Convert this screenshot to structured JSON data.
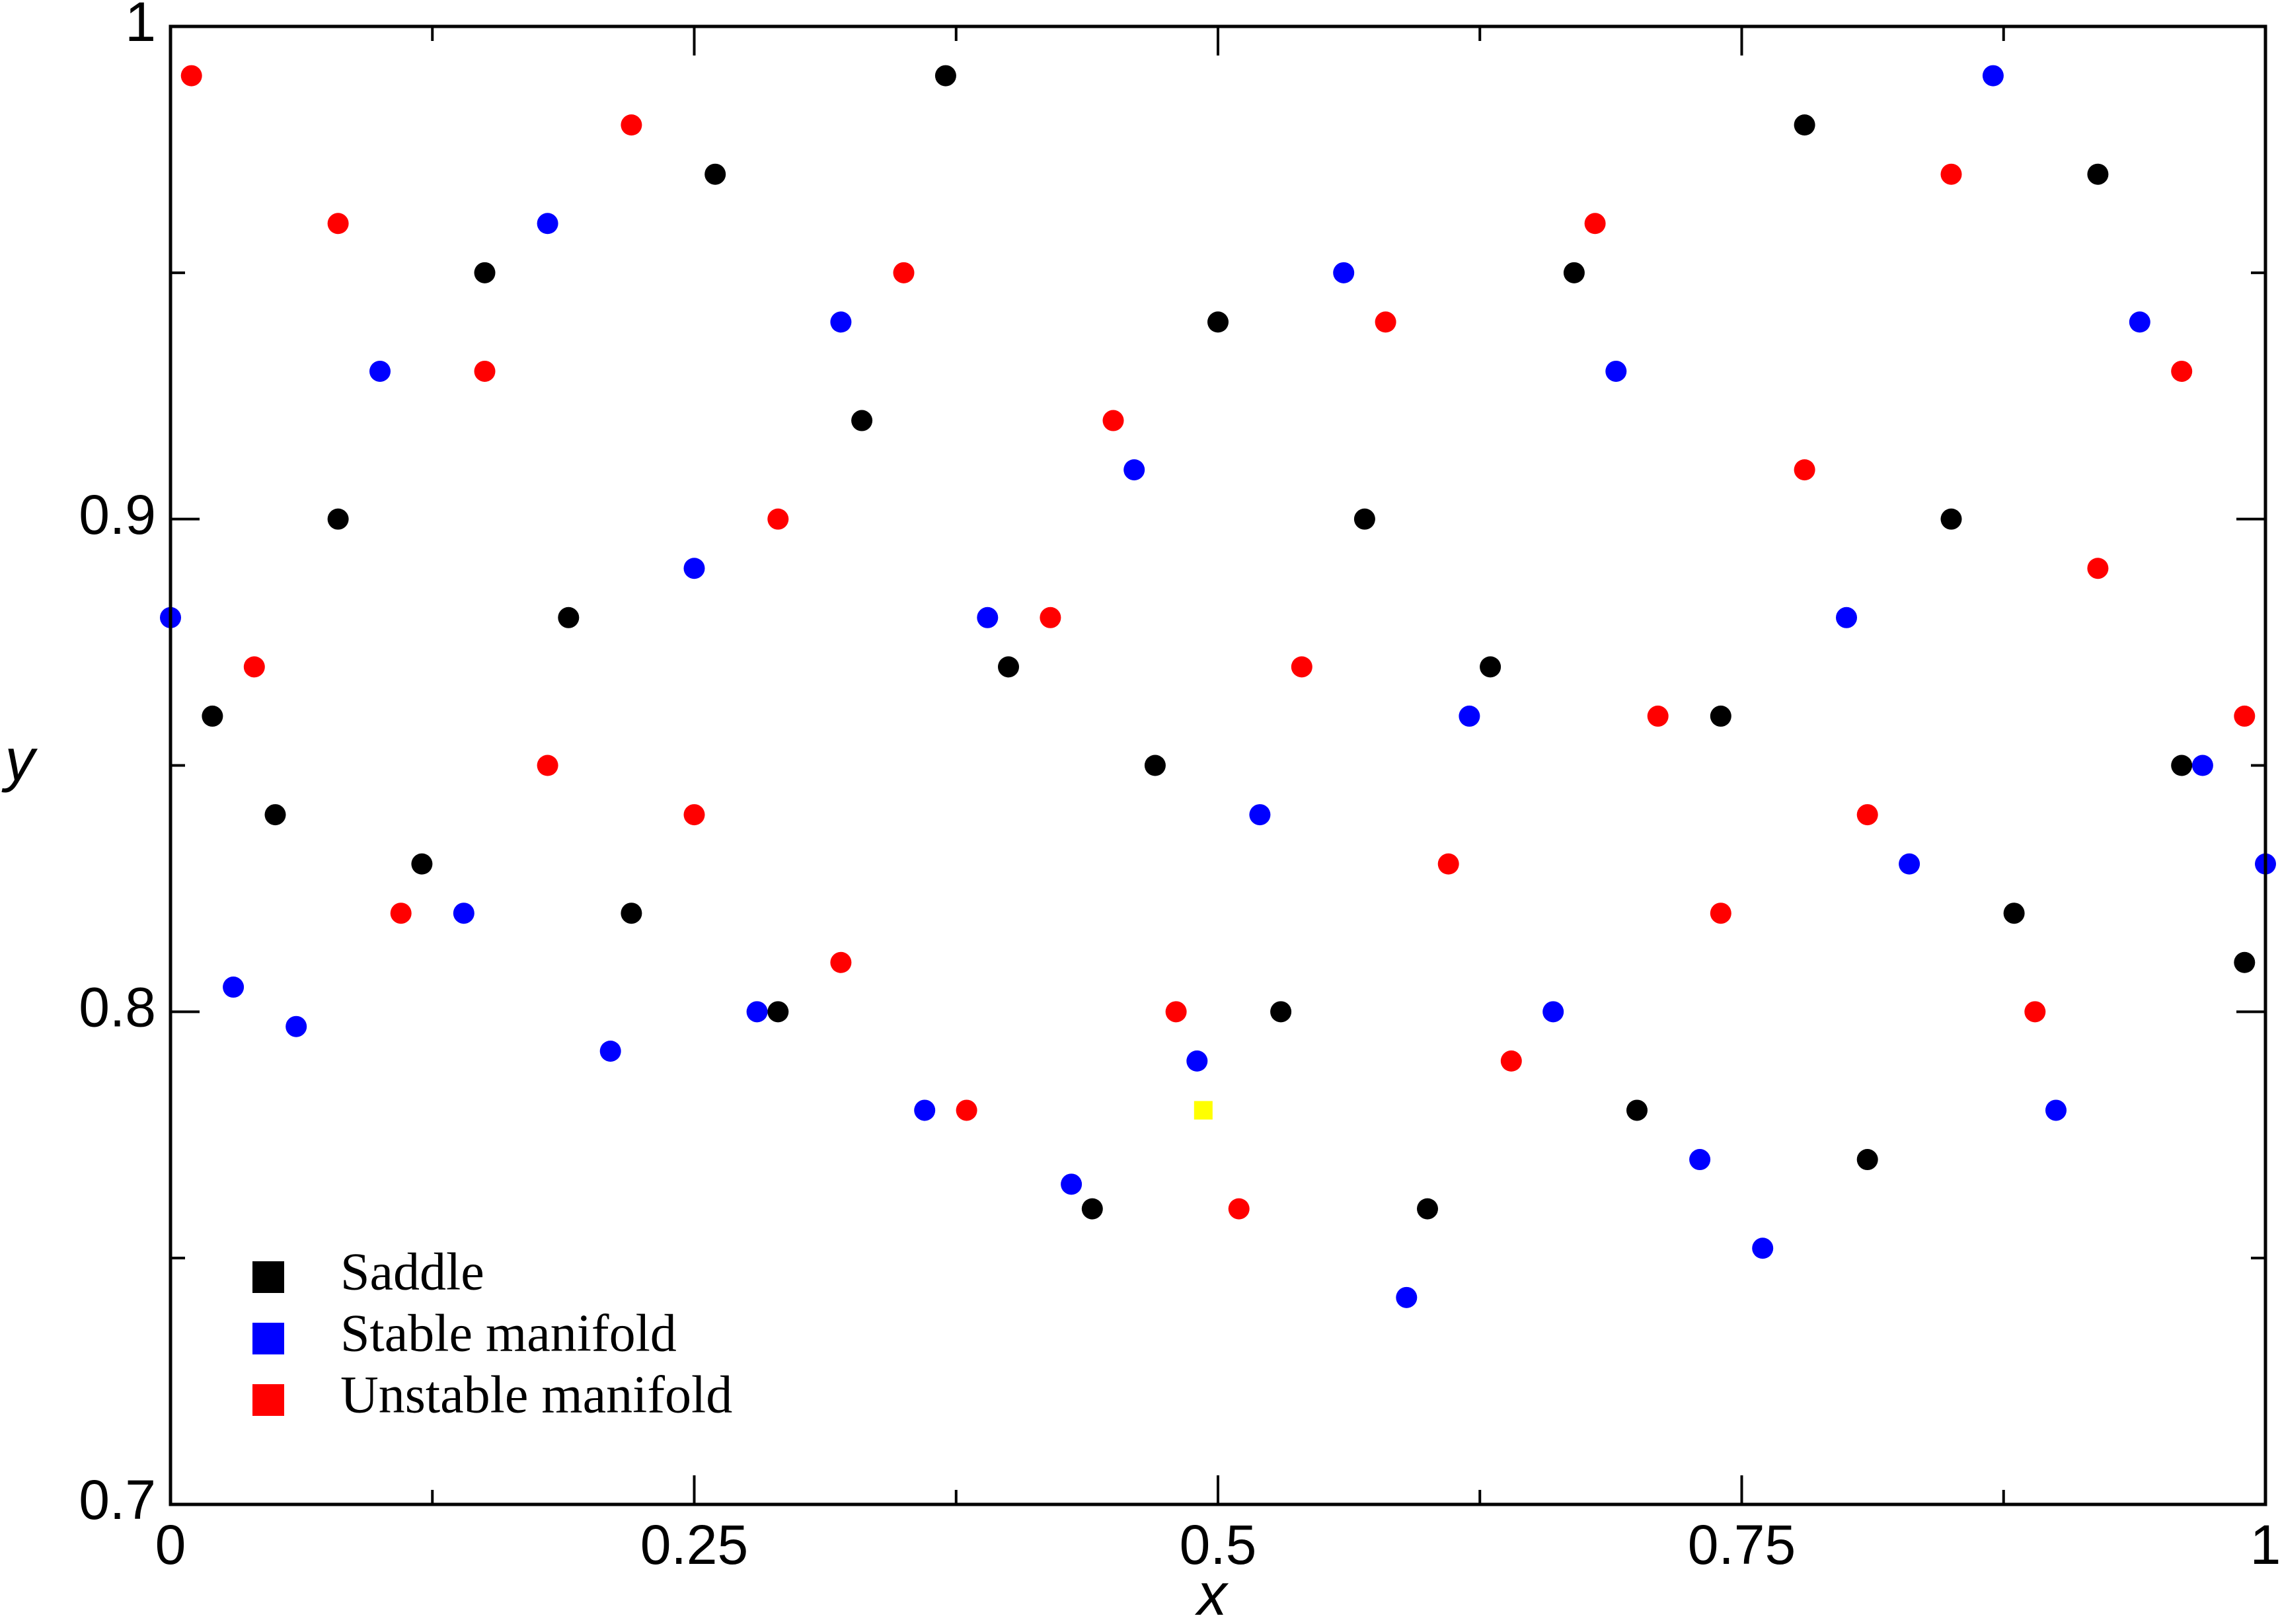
{
  "chart_data": {
    "type": "scatter",
    "xlabel": "x",
    "ylabel": "y",
    "xlim": [
      0,
      1
    ],
    "ylim": [
      0.7,
      1
    ],
    "xticks": [
      0,
      0.25,
      0.5,
      0.75,
      1
    ],
    "xminor": [
      0.125,
      0.375,
      0.625,
      0.875
    ],
    "yticks": [
      0.7,
      0.8,
      0.9,
      1
    ],
    "yminor": [
      0.75,
      0.85,
      0.95
    ],
    "legend": "lower left",
    "series": [
      {
        "name": "Saddle",
        "color": "#000000",
        "x": [
          0.02,
          0.05,
          0.08,
          0.12,
          0.15,
          0.19,
          0.22,
          0.26,
          0.29,
          0.33,
          0.37,
          0.4,
          0.44,
          0.47,
          0.5,
          0.53,
          0.57,
          0.6,
          0.63,
          0.67,
          0.7,
          0.74,
          0.78,
          0.81,
          0.85,
          0.88,
          0.92,
          0.96,
          0.99
        ],
        "y": [
          0.86,
          0.84,
          0.9,
          0.83,
          0.95,
          0.88,
          0.82,
          0.97,
          0.8,
          0.92,
          0.99,
          0.87,
          0.76,
          0.85,
          0.94,
          0.8,
          0.9,
          0.76,
          0.87,
          0.95,
          0.78,
          0.86,
          0.98,
          0.77,
          0.9,
          0.82,
          0.97,
          0.85,
          0.81
        ]
      },
      {
        "name": "Stable manifold",
        "color": "#0000ff",
        "x": [
          0,
          0.03,
          0.06,
          0.1,
          0.14,
          0.18,
          0.21,
          0.25,
          0.28,
          0.32,
          0.36,
          0.39,
          0.43,
          0.46,
          0.49,
          0.52,
          0.56,
          0.59,
          0.62,
          0.66,
          0.69,
          0.73,
          0.76,
          0.8,
          0.83,
          0.87,
          0.9,
          0.94,
          0.97,
          1
        ],
        "y": [
          0.88,
          0.805,
          0.797,
          0.93,
          0.82,
          0.96,
          0.792,
          0.89,
          0.8,
          0.94,
          0.78,
          0.88,
          0.765,
          0.91,
          0.79,
          0.84,
          0.95,
          0.742,
          0.86,
          0.8,
          0.93,
          0.77,
          0.752,
          0.88,
          0.83,
          0.99,
          0.78,
          0.94,
          0.85,
          0.83
        ]
      },
      {
        "name": "Unstable manifold",
        "color": "#ff0000",
        "x": [
          0.01,
          0.04,
          0.08,
          0.11,
          0.15,
          0.18,
          0.22,
          0.25,
          0.29,
          0.32,
          0.35,
          0.38,
          0.42,
          0.45,
          0.48,
          0.51,
          0.54,
          0.58,
          0.61,
          0.64,
          0.68,
          0.71,
          0.74,
          0.78,
          0.81,
          0.85,
          0.89,
          0.92,
          0.96,
          0.99
        ],
        "y": [
          0.99,
          0.87,
          0.96,
          0.82,
          0.93,
          0.85,
          0.98,
          0.84,
          0.9,
          0.81,
          0.95,
          0.78,
          0.88,
          0.92,
          0.8,
          0.76,
          0.87,
          0.94,
          0.83,
          0.79,
          0.96,
          0.86,
          0.82,
          0.91,
          0.84,
          0.97,
          0.8,
          0.89,
          0.93,
          0.86
        ]
      }
    ],
    "marker": {
      "x": 0.493,
      "y": 0.78,
      "color": "#ffff00"
    }
  }
}
